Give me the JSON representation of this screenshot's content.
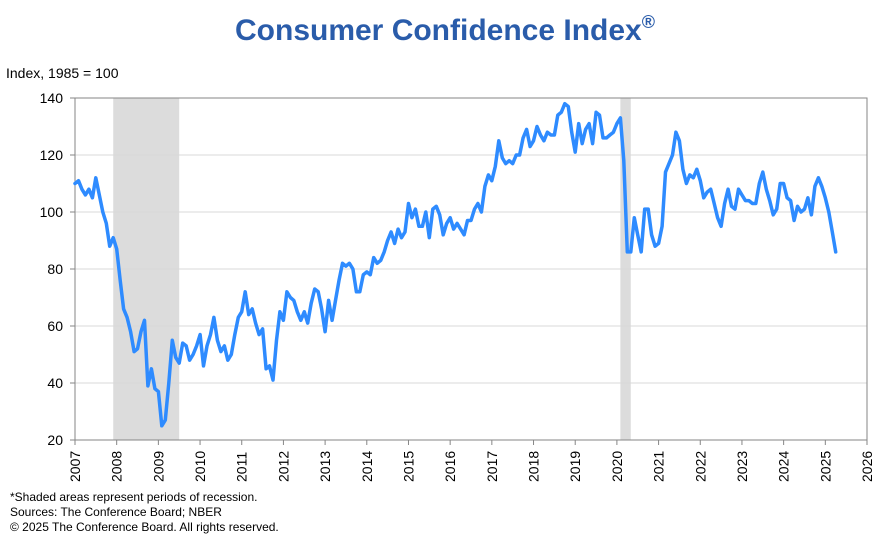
{
  "chart_data": {
    "type": "line",
    "title": "Consumer Confidence Index",
    "title_mark": "®",
    "ylabel": "Index, 1985 = 100",
    "ylim": [
      20,
      140
    ],
    "yticks": [
      20,
      40,
      60,
      80,
      100,
      120,
      140
    ],
    "xlim": [
      2007,
      2026
    ],
    "xticks": [
      "2007",
      "2008",
      "2009",
      "2010",
      "2011",
      "2012",
      "2013",
      "2014",
      "2015",
      "2016",
      "2017",
      "2018",
      "2019",
      "2020",
      "2021",
      "2022",
      "2023",
      "2024",
      "2025",
      "2026"
    ],
    "grid": true,
    "line_color": "#2e8bff",
    "recession_color": "#dcdcdc",
    "start": "2007-01",
    "frequency": "monthly",
    "values": [
      110,
      111,
      108,
      106,
      108,
      105,
      112,
      106,
      100,
      96,
      88,
      91,
      87,
      76,
      66,
      63,
      58,
      51,
      52,
      58,
      62,
      39,
      45,
      38,
      37,
      25,
      27,
      40,
      55,
      49,
      47,
      54,
      53,
      48,
      50,
      53,
      57,
      46,
      53,
      57,
      63,
      55,
      51,
      53,
      48,
      50,
      57,
      63,
      65,
      72,
      64,
      66,
      61,
      57,
      59,
      45,
      46,
      41,
      55,
      65,
      62,
      72,
      70,
      69,
      65,
      62,
      65,
      61,
      68,
      73,
      72,
      66,
      58,
      69,
      62,
      69,
      76,
      82,
      81,
      82,
      80,
      72,
      72,
      78,
      79,
      78,
      84,
      82,
      83,
      86,
      90,
      93,
      89,
      94,
      91,
      93,
      103,
      98,
      101,
      95,
      95,
      100,
      91,
      101,
      102,
      99,
      92,
      96,
      98,
      94,
      96,
      94,
      92,
      97,
      97,
      101,
      103,
      100,
      109,
      113,
      111,
      116,
      125,
      119,
      117,
      118,
      117,
      120,
      120,
      126,
      129,
      123,
      125,
      130,
      127,
      125,
      128,
      127,
      127,
      134,
      135,
      138,
      137,
      128,
      121,
      131,
      124,
      129,
      131,
      124,
      135,
      134,
      126,
      126,
      127,
      128,
      131,
      133,
      118,
      86,
      86,
      98,
      92,
      86,
      101,
      101,
      92,
      88,
      89,
      95,
      114,
      117,
      120,
      128,
      125,
      115,
      110,
      113,
      112,
      115,
      111,
      105,
      107,
      108,
      103,
      98,
      95,
      103,
      108,
      102,
      101,
      108,
      106,
      104,
      104,
      103,
      103,
      110,
      114,
      108,
      104,
      99,
      101,
      110,
      110,
      105,
      104,
      97,
      102,
      100,
      101,
      105,
      99,
      109,
      112,
      109,
      105,
      100,
      93,
      86
    ],
    "recessions": [
      [
        "2007-12",
        "2009-06"
      ],
      [
        "2020-02",
        "2020-04"
      ]
    ]
  },
  "notes": {
    "shading": "*Shaded areas represent periods of recession.",
    "sources": "Sources: The Conference Board;  NBER",
    "copyright": "© 2025 The Conference Board. All rights reserved."
  }
}
